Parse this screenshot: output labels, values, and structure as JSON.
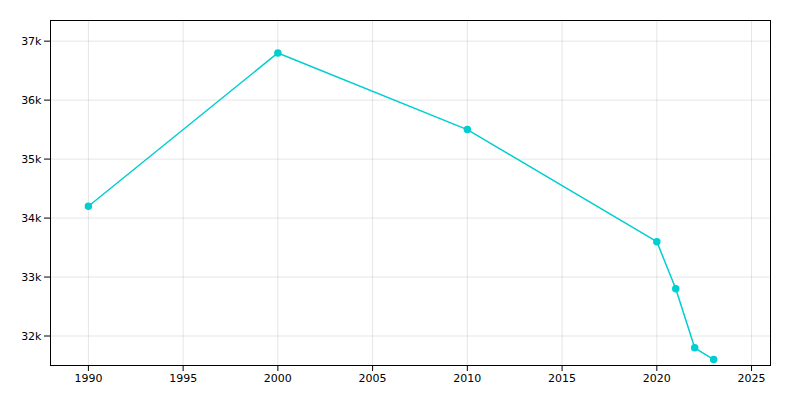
{
  "chart_data": {
    "type": "line",
    "x": [
      1990,
      2000,
      2010,
      2020,
      2021,
      2022,
      2023
    ],
    "values": [
      34200,
      36800,
      35500,
      33600,
      32800,
      31800,
      31600
    ],
    "color": "#00CED1",
    "marker": "circle",
    "xlim": [
      1988,
      2026
    ],
    "xticks": [
      1990,
      1995,
      2000,
      2005,
      2010,
      2015,
      2020,
      2025
    ],
    "ylim": [
      31500,
      37350
    ],
    "yticks": [
      {
        "value": 32000,
        "label": "32k"
      },
      {
        "value": 33000,
        "label": "33k"
      },
      {
        "value": 34000,
        "label": "34k"
      },
      {
        "value": 35000,
        "label": "35k"
      },
      {
        "value": 36000,
        "label": "36k"
      },
      {
        "value": 37000,
        "label": "37k"
      }
    ],
    "grid": true
  }
}
